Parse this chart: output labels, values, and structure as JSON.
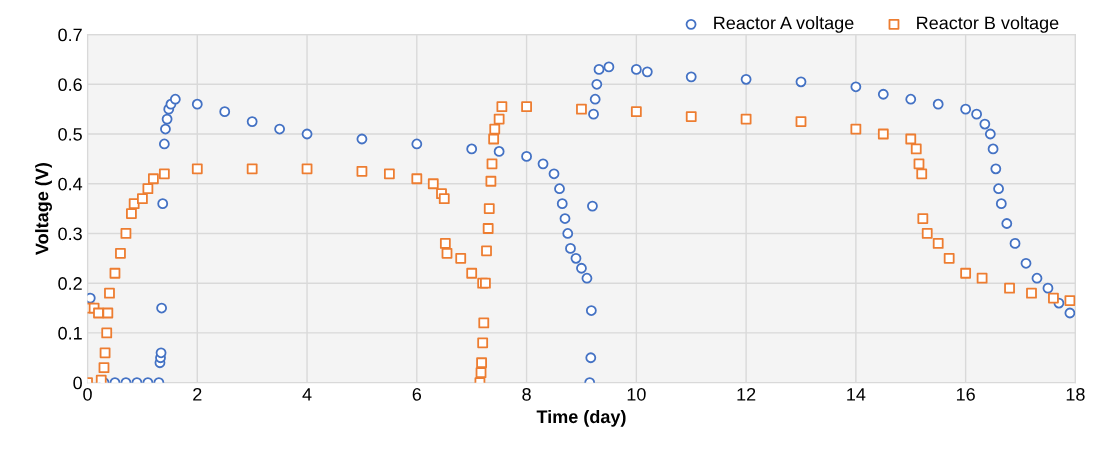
{
  "chart_data": {
    "type": "scatter",
    "xlabel": "Time (day)",
    "ylabel": "Voltage (V)",
    "xlim": [
      0,
      18
    ],
    "xticks": [
      0,
      2,
      4,
      6,
      8,
      10,
      12,
      14,
      16,
      18
    ],
    "ylim": [
      0,
      0.7
    ],
    "yticks": [
      0,
      0.1,
      0.2,
      0.3,
      0.4,
      0.5,
      0.6,
      0.7
    ],
    "grid": true,
    "legend": "top right",
    "series": [
      {
        "name": "Reactor A voltage",
        "color": "#4472c4",
        "marker": "circle",
        "x": [
          0.05,
          0.3,
          0.5,
          0.7,
          0.9,
          1.1,
          1.3,
          1.32,
          1.33,
          1.34,
          1.35,
          1.37,
          1.4,
          1.42,
          1.45,
          1.48,
          1.52,
          1.6,
          2.0,
          2.5,
          3.0,
          3.5,
          4.0,
          5.0,
          6.0,
          7.0,
          7.5,
          8.0,
          8.3,
          8.5,
          8.6,
          8.65,
          8.7,
          8.75,
          8.8,
          8.9,
          9.0,
          9.1,
          9.15,
          9.17,
          9.18,
          9.2,
          9.22,
          9.25,
          9.28,
          9.32,
          9.5,
          10.0,
          10.2,
          11.0,
          12.0,
          13.0,
          14.0,
          14.5,
          15.0,
          15.5,
          16.0,
          16.2,
          16.35,
          16.45,
          16.5,
          16.55,
          16.6,
          16.65,
          16.75,
          16.9,
          17.1,
          17.3,
          17.5,
          17.7,
          17.9
        ],
        "values": [
          0.17,
          0,
          0,
          0,
          0,
          0,
          0,
          0.04,
          0.05,
          0.06,
          0.15,
          0.36,
          0.48,
          0.51,
          0.53,
          0.55,
          0.56,
          0.57,
          0.56,
          0.545,
          0.525,
          0.51,
          0.5,
          0.49,
          0.48,
          0.47,
          0.465,
          0.455,
          0.44,
          0.42,
          0.39,
          0.36,
          0.33,
          0.3,
          0.27,
          0.25,
          0.23,
          0.21,
          0,
          0.05,
          0.145,
          0.355,
          0.54,
          0.57,
          0.6,
          0.63,
          0.635,
          0.63,
          0.625,
          0.615,
          0.61,
          0.605,
          0.595,
          0.58,
          0.57,
          0.56,
          0.55,
          0.54,
          0.52,
          0.5,
          0.47,
          0.43,
          0.39,
          0.36,
          0.32,
          0.28,
          0.24,
          0.21,
          0.19,
          0.16,
          0.14
        ]
      },
      {
        "name": "Reactor B voltage",
        "color": "#ed7d31",
        "marker": "square",
        "x": [
          0.0,
          0.05,
          0.12,
          0.2,
          0.25,
          0.3,
          0.32,
          0.35,
          0.37,
          0.4,
          0.5,
          0.6,
          0.7,
          0.8,
          0.85,
          1.0,
          1.1,
          1.2,
          1.4,
          2.0,
          3.0,
          4.0,
          5.0,
          5.5,
          6.0,
          6.3,
          6.45,
          6.5,
          6.52,
          6.55,
          6.8,
          7.0,
          7.2,
          7.15,
          7.17,
          7.18,
          7.2,
          7.22,
          7.25,
          7.27,
          7.3,
          7.32,
          7.35,
          7.37,
          7.4,
          7.42,
          7.5,
          7.55,
          8.0,
          9.0,
          10.0,
          11.0,
          12.0,
          13.0,
          14.0,
          14.5,
          15.0,
          15.1,
          15.15,
          15.2,
          15.22,
          15.3,
          15.5,
          15.7,
          16.0,
          16.3,
          16.8,
          17.2,
          17.6,
          17.9
        ],
        "values": [
          0,
          0.15,
          0.15,
          0.14,
          0.005,
          0.03,
          0.06,
          0.1,
          0.14,
          0.18,
          0.22,
          0.26,
          0.3,
          0.34,
          0.36,
          0.37,
          0.39,
          0.41,
          0.42,
          0.43,
          0.43,
          0.43,
          0.425,
          0.42,
          0.41,
          0.4,
          0.38,
          0.37,
          0.28,
          0.26,
          0.25,
          0.22,
          0.2,
          0,
          0.02,
          0.04,
          0.08,
          0.12,
          0.2,
          0.265,
          0.31,
          0.35,
          0.405,
          0.44,
          0.49,
          0.51,
          0.53,
          0.555,
          0.555,
          0.55,
          0.545,
          0.535,
          0.53,
          0.525,
          0.51,
          0.5,
          0.49,
          0.47,
          0.44,
          0.42,
          0.33,
          0.3,
          0.28,
          0.25,
          0.22,
          0.21,
          0.19,
          0.18,
          0.17,
          0.165
        ]
      }
    ]
  }
}
